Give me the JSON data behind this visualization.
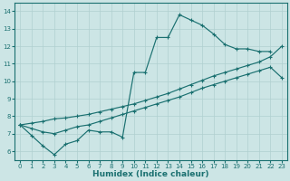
{
  "bg_color": "#cce5e5",
  "grid_color": "#b0d0d0",
  "line_color": "#1a7070",
  "xlabel": "Humidex (Indice chaleur)",
  "xlim": [
    -0.5,
    23.5
  ],
  "ylim": [
    5.5,
    14.5
  ],
  "xticks": [
    0,
    1,
    2,
    3,
    4,
    5,
    6,
    7,
    8,
    9,
    10,
    11,
    12,
    13,
    14,
    15,
    16,
    17,
    18,
    19,
    20,
    21,
    22,
    23
  ],
  "yticks": [
    6,
    7,
    8,
    9,
    10,
    11,
    12,
    13,
    14
  ],
  "curve1_x": [
    0,
    1,
    2,
    3,
    4,
    5,
    6,
    7,
    8,
    9,
    10,
    11,
    12,
    13,
    14,
    15,
    16,
    17,
    18,
    19,
    20,
    21,
    22
  ],
  "curve1_y": [
    7.5,
    6.9,
    6.3,
    5.8,
    6.4,
    6.6,
    7.2,
    7.1,
    7.1,
    6.8,
    10.5,
    10.5,
    12.5,
    12.5,
    13.8,
    13.5,
    13.2,
    12.7,
    12.1,
    11.85,
    11.85,
    11.7,
    11.7
  ],
  "curve2_x": [
    0,
    1,
    2,
    3,
    4,
    5,
    6,
    7,
    8,
    9,
    10,
    11,
    12,
    13,
    14,
    15,
    16,
    17,
    18,
    19,
    20,
    21,
    22,
    23
  ],
  "curve2_y": [
    7.5,
    7.3,
    7.1,
    7.0,
    7.2,
    7.4,
    7.5,
    7.7,
    7.9,
    8.1,
    8.3,
    8.5,
    8.7,
    8.9,
    9.1,
    9.35,
    9.6,
    9.8,
    10.0,
    10.2,
    10.4,
    10.6,
    10.8,
    10.2
  ],
  "curve3_x": [
    0,
    1,
    2,
    3,
    4,
    5,
    6,
    7,
    8,
    9,
    10,
    11,
    12,
    13,
    14,
    15,
    16,
    17,
    18,
    19,
    20,
    21,
    22,
    23
  ],
  "curve3_y": [
    7.5,
    7.6,
    7.7,
    7.85,
    7.9,
    8.0,
    8.1,
    8.25,
    8.4,
    8.55,
    8.7,
    8.9,
    9.1,
    9.3,
    9.55,
    9.8,
    10.05,
    10.3,
    10.5,
    10.7,
    10.9,
    11.1,
    11.4,
    12.0
  ]
}
